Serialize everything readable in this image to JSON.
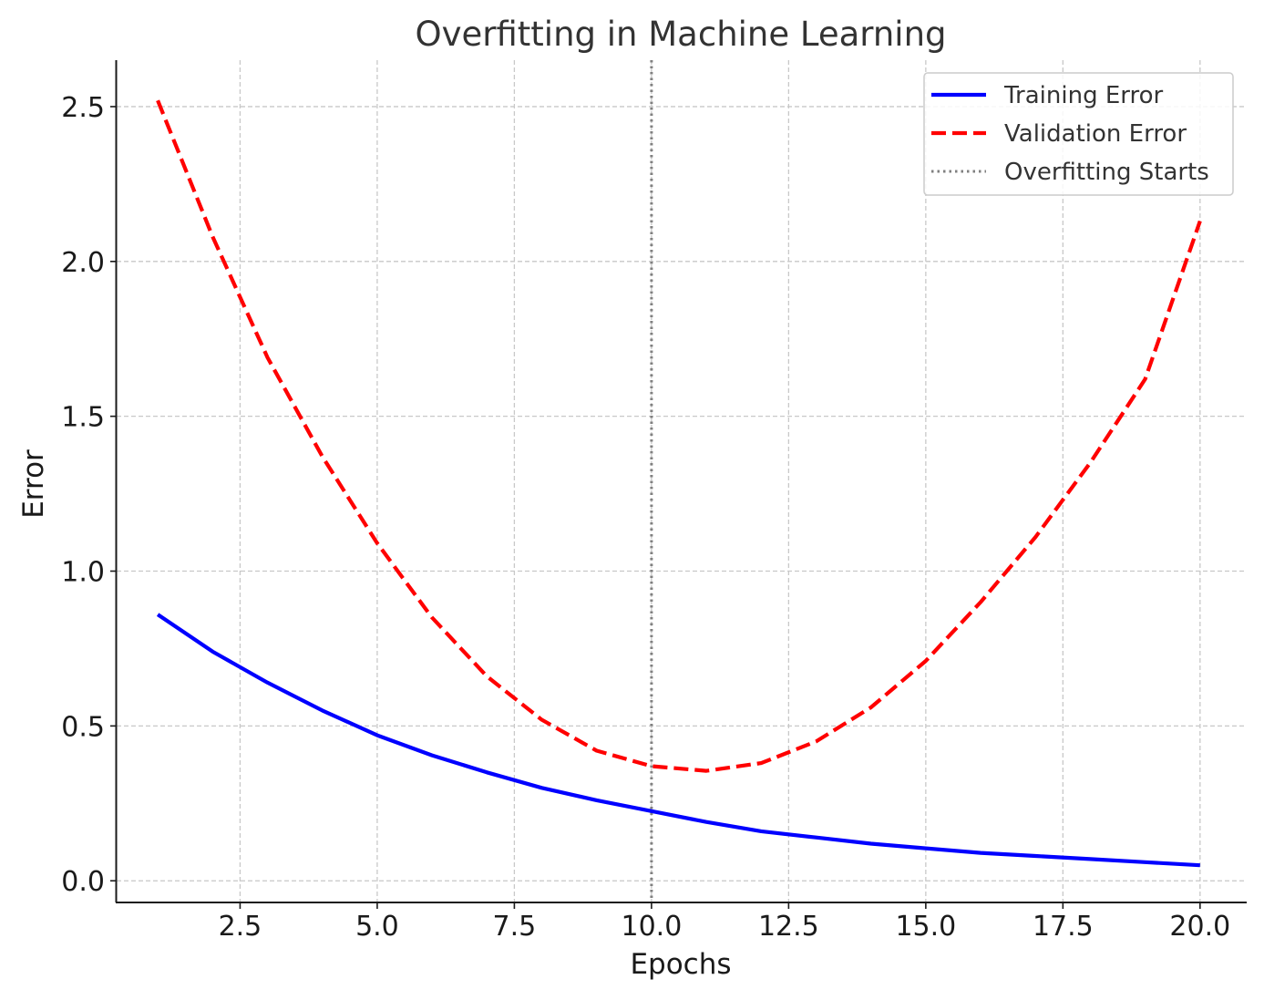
{
  "chart_data": {
    "type": "line",
    "title": "Overfitting in Machine Learning",
    "xlabel": "Epochs",
    "ylabel": "Error",
    "xlim": [
      0.25,
      20.85
    ],
    "ylim": [
      -0.07,
      2.65
    ],
    "xticks": [
      2.5,
      5.0,
      7.5,
      10.0,
      12.5,
      15.0,
      17.5,
      20.0
    ],
    "xtick_labels": [
      "2.5",
      "5.0",
      "7.5",
      "10.0",
      "12.5",
      "15.0",
      "17.5",
      "20.0"
    ],
    "yticks": [
      0.0,
      0.5,
      1.0,
      1.5,
      2.0,
      2.5
    ],
    "ytick_labels": [
      "0.0",
      "0.5",
      "1.0",
      "1.5",
      "2.0",
      "2.5"
    ],
    "grid": true,
    "legend_position": "top-right",
    "x": [
      1,
      2,
      3,
      4,
      5,
      6,
      7,
      8,
      9,
      10,
      11,
      12,
      13,
      14,
      15,
      16,
      17,
      18,
      19,
      20
    ],
    "series": [
      {
        "name": "Training Error",
        "color": "#0000ff",
        "style": "solid",
        "values": [
          0.86,
          0.74,
          0.64,
          0.55,
          0.47,
          0.405,
          0.35,
          0.3,
          0.26,
          0.225,
          0.19,
          0.16,
          0.14,
          0.12,
          0.105,
          0.09,
          0.08,
          0.07,
          0.06,
          0.05
        ]
      },
      {
        "name": "Validation Error",
        "color": "#ff0000",
        "style": "dashed",
        "values": [
          2.52,
          2.08,
          1.69,
          1.37,
          1.09,
          0.85,
          0.66,
          0.52,
          0.42,
          0.37,
          0.355,
          0.38,
          0.45,
          0.56,
          0.71,
          0.9,
          1.11,
          1.35,
          1.62,
          2.13
        ]
      }
    ],
    "vlines": [
      {
        "name": "Overfitting Starts",
        "x": 10,
        "color": "#808080",
        "style": "dotted"
      }
    ]
  }
}
